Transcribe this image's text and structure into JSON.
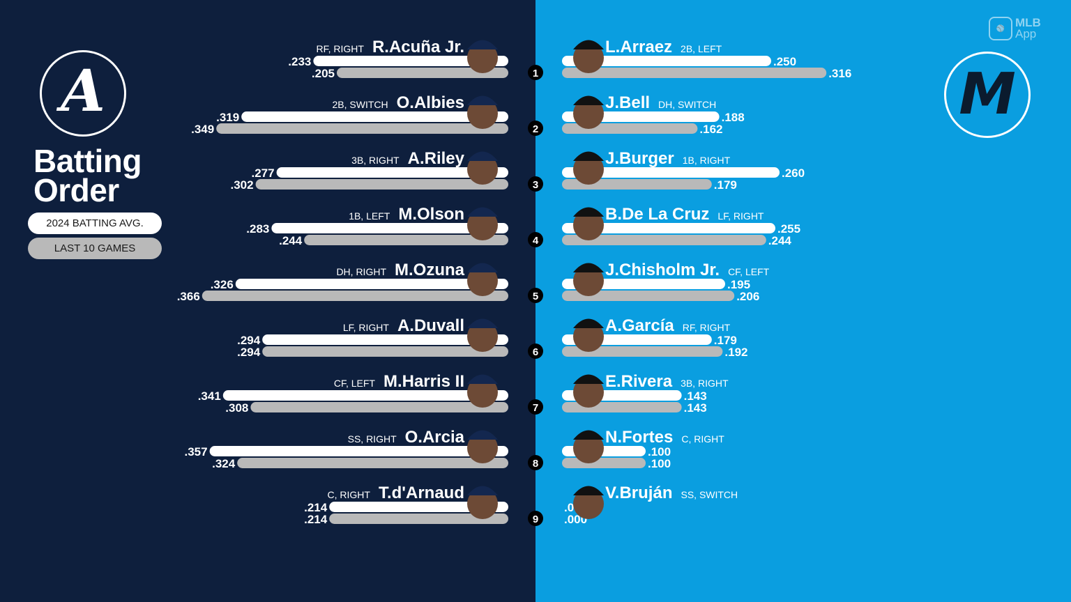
{
  "title_line1": "Batting",
  "title_line2": "Order",
  "legend": {
    "avg_label": "2024 BATTING AVG.",
    "last10_label": "LAST 10 GAMES"
  },
  "app_badge": {
    "brand": "MLB",
    "sub": "App",
    "icon": "mlb-logo-icon"
  },
  "colors": {
    "left_bg": "#0e1f3d",
    "right_bg": "#0a9ee0",
    "avg_bar": "#ffffff",
    "last10_bar": "#b9b9b9",
    "text": "#ffffff",
    "number_circle": "#000000"
  },
  "teams": {
    "left": {
      "logo_letter": "A",
      "logo_icon": "braves-a-logo-icon"
    },
    "right": {
      "logo_letter": "M",
      "logo_icon": "marlins-m-logo-icon"
    }
  },
  "chart_data": {
    "type": "bar",
    "orientation": "horizontal-mirrored",
    "series": [
      {
        "name": "2024 BATTING AVG."
      },
      {
        "name": "LAST 10 GAMES"
      }
    ],
    "left_team": [
      {
        "order": "1",
        "name": "R.Acuña Jr.",
        "pos": "RF, RIGHT",
        "avg": 0.233,
        "avg_label": ".233",
        "last10": 0.205,
        "last10_label": ".205"
      },
      {
        "order": "2",
        "name": "O.Albies",
        "pos": "2B, SWITCH",
        "avg": 0.319,
        "avg_label": ".319",
        "last10": 0.349,
        "last10_label": ".349"
      },
      {
        "order": "3",
        "name": "A.Riley",
        "pos": "3B, RIGHT",
        "avg": 0.277,
        "avg_label": ".277",
        "last10": 0.302,
        "last10_label": ".302"
      },
      {
        "order": "4",
        "name": "M.Olson",
        "pos": "1B, LEFT",
        "avg": 0.283,
        "avg_label": ".283",
        "last10": 0.244,
        "last10_label": ".244"
      },
      {
        "order": "5",
        "name": "M.Ozuna",
        "pos": "DH, RIGHT",
        "avg": 0.326,
        "avg_label": ".326",
        "last10": 0.366,
        "last10_label": ".366"
      },
      {
        "order": "6",
        "name": "A.Duvall",
        "pos": "LF, RIGHT",
        "avg": 0.294,
        "avg_label": ".294",
        "last10": 0.294,
        "last10_label": ".294"
      },
      {
        "order": "7",
        "name": "M.Harris II",
        "pos": "CF, LEFT",
        "avg": 0.341,
        "avg_label": ".341",
        "last10": 0.308,
        "last10_label": ".308"
      },
      {
        "order": "8",
        "name": "O.Arcia",
        "pos": "SS, RIGHT",
        "avg": 0.357,
        "avg_label": ".357",
        "last10": 0.324,
        "last10_label": ".324"
      },
      {
        "order": "9",
        "name": "T.d'Arnaud",
        "pos": "C, RIGHT",
        "avg": 0.214,
        "avg_label": ".214",
        "last10": 0.214,
        "last10_label": ".214"
      }
    ],
    "right_team": [
      {
        "name": "L.Arraez",
        "pos": "2B, LEFT",
        "avg": 0.25,
        "avg_label": ".250",
        "last10": 0.316,
        "last10_label": ".316"
      },
      {
        "name": "J.Bell",
        "pos": "DH, SWITCH",
        "avg": 0.188,
        "avg_label": ".188",
        "last10": 0.162,
        "last10_label": ".162"
      },
      {
        "name": "J.Burger",
        "pos": "1B, RIGHT",
        "avg": 0.26,
        "avg_label": ".260",
        "last10": 0.179,
        "last10_label": ".179"
      },
      {
        "name": "B.De La Cruz",
        "pos": "LF, RIGHT",
        "avg": 0.255,
        "avg_label": ".255",
        "last10": 0.244,
        "last10_label": ".244"
      },
      {
        "name": "J.Chisholm Jr.",
        "pos": "CF, LEFT",
        "avg": 0.195,
        "avg_label": ".195",
        "last10": 0.206,
        "last10_label": ".206"
      },
      {
        "name": "A.García",
        "pos": "RF, RIGHT",
        "avg": 0.179,
        "avg_label": ".179",
        "last10": 0.192,
        "last10_label": ".192"
      },
      {
        "name": "E.Rivera",
        "pos": "3B, RIGHT",
        "avg": 0.143,
        "avg_label": ".143",
        "last10": 0.143,
        "last10_label": ".143"
      },
      {
        "name": "N.Fortes",
        "pos": "C, RIGHT",
        "avg": 0.1,
        "avg_label": ".100",
        "last10": 0.1,
        "last10_label": ".100"
      },
      {
        "name": "V.Bruján",
        "pos": "SS, SWITCH",
        "avg": 0.0,
        "avg_label": ".000",
        "last10": 0.0,
        "last10_label": ".000"
      }
    ]
  }
}
